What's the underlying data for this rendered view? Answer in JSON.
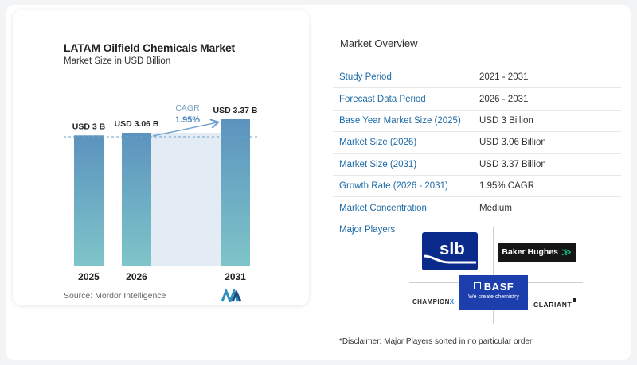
{
  "chart_data": {
    "type": "bar",
    "title": "LATAM Oilfield Chemicals Market",
    "subtitle": "Market Size in USD Billion",
    "categories": [
      "2025",
      "2026",
      "2031"
    ],
    "values": [
      3.0,
      3.06,
      3.37
    ],
    "data_labels": [
      "USD 3 B",
      "USD 3.06 B",
      "USD 3.37 B"
    ],
    "cagr_label": "CAGR",
    "cagr_value": "1.95%",
    "ylim": [
      0,
      3.37
    ],
    "grid": false,
    "colors": {
      "bar_top": "#5b93be",
      "bar_bottom": "#7fc5c9",
      "forecast_band": "#e3ecf5",
      "cagr_arrow": "#6a9fcf",
      "dashed_line": "#6aa2c6"
    }
  },
  "source": "Source:  Mordor Intelligence",
  "overview": {
    "title": "Market Overview",
    "rows": [
      {
        "label": "Study Period",
        "value": "2021 - 2031"
      },
      {
        "label": "Forecast Data Period",
        "value": "2026 - 2031"
      },
      {
        "label": "Base Year Market Size (2025)",
        "value": "USD 3 Billion"
      },
      {
        "label": "Market Size (2026)",
        "value": "USD 3.06 Billion"
      },
      {
        "label": "Market Size (2031)",
        "value": "USD 3.37 Billion"
      },
      {
        "label": "Growth Rate (2026 - 2031)",
        "value": "1.95% CAGR"
      },
      {
        "label": "Market Concentration",
        "value": "Medium"
      }
    ],
    "players_label": "Major Players",
    "players": {
      "slb": "slb",
      "baker": "Baker Hughes",
      "basf": "BASF",
      "basf_tag": "We create chemistry",
      "championx_main": "CHAMPION",
      "championx_x": "X",
      "clariant": "CLARIANT"
    },
    "disclaimer": "*Disclaimer: Major Players sorted in no particular order"
  },
  "icons": {
    "slb": "slb-logo-icon",
    "baker": "baker-hughes-logo-icon",
    "basf": "basf-logo-icon",
    "mordor": "mordor-intelligence-logo-icon"
  }
}
